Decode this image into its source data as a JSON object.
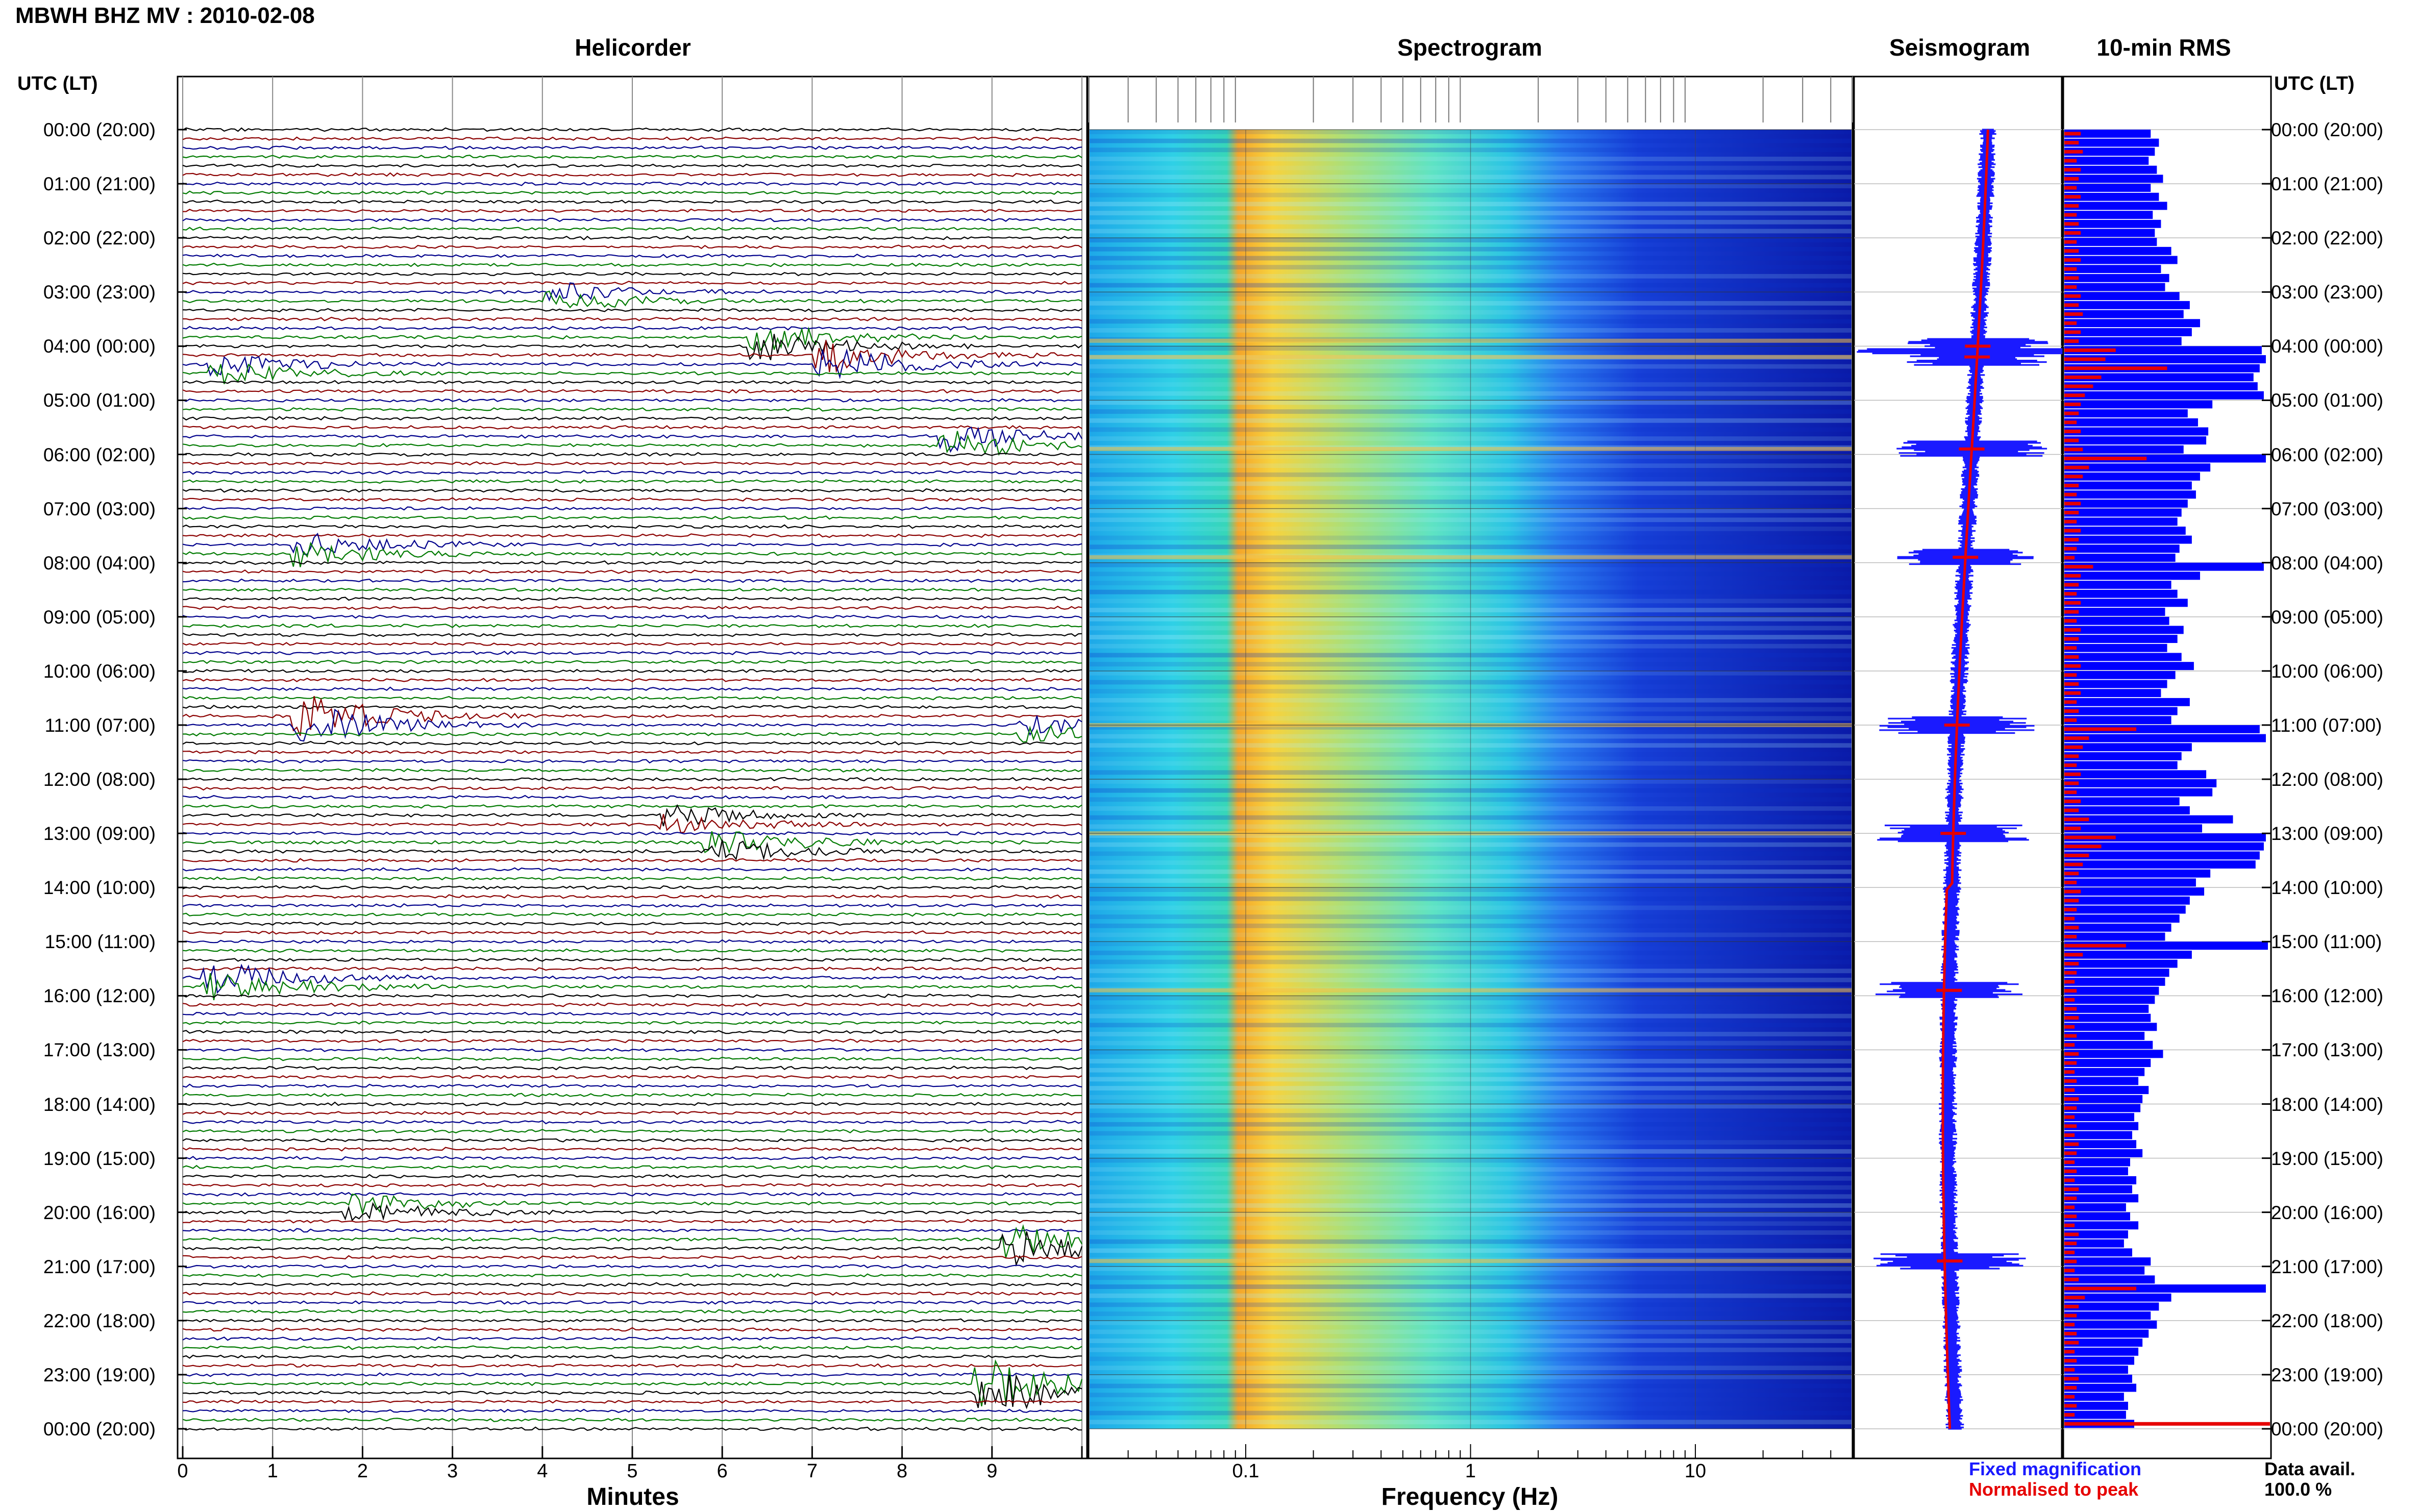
{
  "header": {
    "title": "MBWH BHZ MV : 2010-02-08",
    "utc_left": "UTC (LT)",
    "utc_right": "UTC (LT)"
  },
  "panels": {
    "helicorder": "Helicorder",
    "spectrogram": "Spectrogram",
    "seismogram": "Seismogram",
    "rms": "10-min RMS"
  },
  "axes": {
    "minutes_label": "Minutes",
    "frequency_label": "Frequency (Hz)",
    "minute_ticks": [
      "0",
      "1",
      "2",
      "3",
      "4",
      "5",
      "6",
      "7",
      "8",
      "9"
    ],
    "freq_ticks": [
      "0.1",
      "1",
      "10"
    ]
  },
  "legend": {
    "fixed": "Fixed magnification",
    "normalised": "Normalised to peak",
    "data_avail_label": "Data avail.",
    "data_avail_value": "100.0 %"
  },
  "time_labels": [
    "00:00 (20:00)",
    "01:00 (21:00)",
    "02:00 (22:00)",
    "03:00 (23:00)",
    "04:00 (00:00)",
    "05:00 (01:00)",
    "06:00 (02:00)",
    "07:00 (03:00)",
    "08:00 (04:00)",
    "09:00 (05:00)",
    "10:00 (06:00)",
    "11:00 (07:00)",
    "12:00 (08:00)",
    "13:00 (09:00)",
    "14:00 (10:00)",
    "15:00 (11:00)",
    "16:00 (12:00)",
    "17:00 (13:00)",
    "18:00 (14:00)",
    "19:00 (15:00)",
    "20:00 (16:00)",
    "21:00 (17:00)",
    "22:00 (18:00)",
    "23:00 (19:00)",
    "00:00 (20:00)"
  ],
  "colors": {
    "trace_cycle": [
      "#000000",
      "#8b0000",
      "#00008b",
      "#007a00"
    ],
    "fixed": "#1a1aff",
    "normalised": "#e60000",
    "rms_bar": "#0000ff"
  },
  "chart_data": {
    "type": "heatmap",
    "helicorder": {
      "xlim": [
        0,
        10
      ],
      "hours": 24,
      "traces_per_hour": 6,
      "events": [
        {
          "hour": 3.1,
          "minute": 4.2,
          "amp": 0.9
        },
        {
          "hour": 3.9,
          "minute": 6.5,
          "amp": 1.3
        },
        {
          "hour": 4.2,
          "minute": 7.2,
          "amp": 1.6
        },
        {
          "hour": 4.4,
          "minute": 0.5,
          "amp": 1.0
        },
        {
          "hour": 5.7,
          "minute": 8.6,
          "amp": 1.4
        },
        {
          "hour": 7.8,
          "minute": 1.4,
          "amp": 1.2
        },
        {
          "hour": 10.9,
          "minute": 1.4,
          "amp": 2.0
        },
        {
          "hour": 11.1,
          "minute": 9.5,
          "amp": 0.8
        },
        {
          "hour": 12.8,
          "minute": 5.5,
          "amp": 1.0
        },
        {
          "hour": 13.2,
          "minute": 6.0,
          "amp": 1.2
        },
        {
          "hour": 15.8,
          "minute": 0.4,
          "amp": 1.6
        },
        {
          "hour": 19.9,
          "minute": 2.0,
          "amp": 1.0
        },
        {
          "hour": 20.6,
          "minute": 9.3,
          "amp": 1.8
        },
        {
          "hour": 23.3,
          "minute": 9.0,
          "amp": 2.2
        }
      ]
    },
    "spectrogram": {
      "xscale": "log",
      "xlim": [
        0.02,
        50
      ],
      "peak_band_hz": [
        0.1,
        0.3
      ],
      "strong_rows_hour": [
        3.9,
        4.2,
        5.9,
        7.9,
        11.0,
        13.0,
        15.9,
        20.9
      ]
    },
    "seismogram": {
      "series": [
        {
          "name": "Fixed magnification",
          "color": "#1a1aff"
        },
        {
          "name": "Normalised to peak",
          "color": "#e60000"
        }
      ],
      "spike_hours": [
        4.0,
        4.2,
        5.9,
        7.9,
        11.0,
        13.0,
        15.9,
        20.9
      ]
    },
    "rms": {
      "bin_minutes": 10,
      "blue": [
        0.42,
        0.46,
        0.44,
        0.41,
        0.45,
        0.48,
        0.42,
        0.46,
        0.5,
        0.43,
        0.47,
        0.44,
        0.45,
        0.52,
        0.55,
        0.47,
        0.51,
        0.49,
        0.56,
        0.61,
        0.58,
        0.66,
        0.62,
        0.57,
        0.96,
        0.98,
        0.95,
        0.92,
        0.94,
        0.97,
        0.72,
        0.6,
        0.65,
        0.7,
        0.69,
        0.58,
        0.98,
        0.71,
        0.66,
        0.62,
        0.64,
        0.6,
        0.57,
        0.55,
        0.59,
        0.62,
        0.56,
        0.54,
        0.97,
        0.66,
        0.52,
        0.55,
        0.6,
        0.49,
        0.51,
        0.58,
        0.55,
        0.5,
        0.57,
        0.63,
        0.54,
        0.5,
        0.47,
        0.61,
        0.55,
        0.52,
        0.95,
        0.98,
        0.62,
        0.57,
        0.55,
        0.69,
        0.74,
        0.72,
        0.56,
        0.61,
        0.82,
        0.67,
        0.98,
        0.97,
        0.95,
        0.93,
        0.71,
        0.64,
        0.68,
        0.61,
        0.59,
        0.56,
        0.52,
        0.49,
        0.99,
        0.62,
        0.55,
        0.51,
        0.49,
        0.46,
        0.44,
        0.41,
        0.42,
        0.45,
        0.39,
        0.43,
        0.48,
        0.42,
        0.39,
        0.36,
        0.41,
        0.38,
        0.37,
        0.34,
        0.36,
        0.33,
        0.35,
        0.38,
        0.32,
        0.31,
        0.35,
        0.33,
        0.36,
        0.3,
        0.32,
        0.36,
        0.31,
        0.29,
        0.33,
        0.42,
        0.39,
        0.44,
        0.98,
        0.52,
        0.46,
        0.42,
        0.45,
        0.41,
        0.38,
        0.36,
        0.34,
        0.31,
        0.33,
        0.35,
        0.29,
        0.31,
        0.3,
        0.34
      ],
      "red": [
        0.08,
        0.07,
        0.09,
        0.06,
        0.08,
        0.07,
        0.06,
        0.08,
        0.07,
        0.06,
        0.07,
        0.08,
        0.06,
        0.07,
        0.08,
        0.06,
        0.07,
        0.06,
        0.08,
        0.07,
        0.09,
        0.06,
        0.08,
        0.07,
        0.25,
        0.2,
        0.5,
        0.18,
        0.14,
        0.1,
        0.08,
        0.07,
        0.06,
        0.08,
        0.07,
        0.09,
        0.4,
        0.12,
        0.09,
        0.07,
        0.06,
        0.08,
        0.07,
        0.06,
        0.08,
        0.07,
        0.06,
        0.05,
        0.14,
        0.08,
        0.07,
        0.06,
        0.08,
        0.07,
        0.06,
        0.08,
        0.07,
        0.06,
        0.07,
        0.08,
        0.06,
        0.07,
        0.08,
        0.06,
        0.07,
        0.06,
        0.35,
        0.12,
        0.09,
        0.07,
        0.06,
        0.08,
        0.07,
        0.06,
        0.08,
        0.07,
        0.12,
        0.08,
        0.25,
        0.18,
        0.12,
        0.09,
        0.07,
        0.06,
        0.08,
        0.07,
        0.06,
        0.05,
        0.07,
        0.06,
        0.3,
        0.09,
        0.07,
        0.06,
        0.05,
        0.06,
        0.05,
        0.06,
        0.07,
        0.05,
        0.06,
        0.05,
        0.07,
        0.06,
        0.05,
        0.06,
        0.05,
        0.07,
        0.06,
        0.05,
        0.06,
        0.05,
        0.07,
        0.06,
        0.05,
        0.06,
        0.05,
        0.07,
        0.06,
        0.05,
        0.06,
        0.05,
        0.07,
        0.06,
        0.05,
        0.06,
        0.05,
        0.07,
        0.35,
        0.1,
        0.07,
        0.06,
        0.05,
        0.06,
        0.07,
        0.05,
        0.06,
        0.05,
        0.07,
        0.06,
        0.05,
        0.06,
        0.05,
        1.0
      ]
    }
  }
}
